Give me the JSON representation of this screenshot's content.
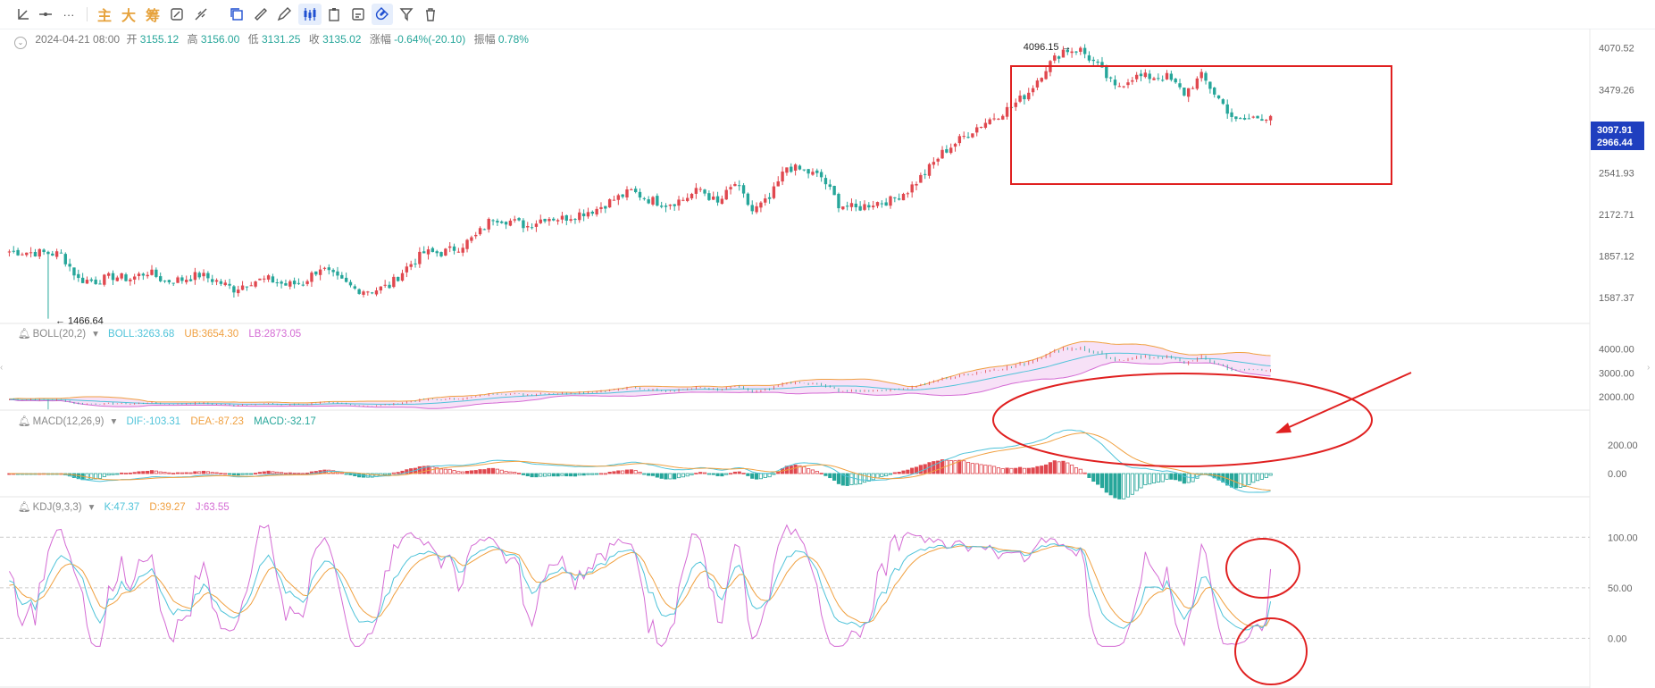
{
  "toolbar": {
    "items": [
      {
        "name": "trendline-tool",
        "label": ""
      },
      {
        "name": "horizontal-line-tool",
        "label": ""
      },
      {
        "name": "more-tool",
        "label": "···"
      },
      {
        "name": "main-force",
        "label": "主"
      },
      {
        "name": "big-order",
        "label": "大"
      },
      {
        "name": "chips",
        "label": "筹"
      }
    ]
  },
  "ohlc": {
    "datetime": "2024-04-21 08:00",
    "open_label": "开",
    "open": "3155.12",
    "high_label": "高",
    "high": "3156.00",
    "low_label": "低",
    "low": "3131.25",
    "close_label": "收",
    "close": "3135.02",
    "change_label": "涨幅",
    "change": "-0.64%(-20.10)",
    "amp_label": "振幅",
    "amp": "0.78%"
  },
  "boll_head": {
    "name": "BOLL(20,2)",
    "mid": "BOLL:3263.68",
    "ub": "UB:3654.30",
    "lb": "LB:2873.05"
  },
  "macd_head": {
    "name": "MACD(12,26,9)",
    "dif": "DIF:-103.31",
    "dea": "DEA:-87.23",
    "macd": "MACD:-32.17"
  },
  "kdj_head": {
    "name": "KDJ(9,3,3)",
    "k": "K:47.37",
    "d": "D:39.27",
    "j": "J:63.55"
  },
  "colors": {
    "up": "#e0484f",
    "down": "#26a69a",
    "annotation": "#e02020",
    "ub": "#f0a040",
    "lb": "#d46bd4",
    "mid": "#4fc3d9",
    "k": "#4fc3d9",
    "d": "#f0a040",
    "j": "#d46bd4",
    "price_badge": "#1f3fbf"
  },
  "chart_data": [
    {
      "type": "candlestick",
      "title": "",
      "y_ticks": [
        "4070.52",
        "3479.26",
        "2541.93",
        "2172.71",
        "1857.12",
        "1587.37"
      ],
      "annotations": {
        "high_label": "4096.15",
        "low_label": "1466.64"
      },
      "price_badges": [
        "3097.91",
        "2966.44"
      ],
      "anchor_closes": [
        1890,
        1885,
        1880,
        1870,
        1700,
        1690,
        1720,
        1705,
        1750,
        1690,
        1700,
        1730,
        1690,
        1640,
        1690,
        1700,
        1665,
        1680,
        1780,
        1700,
        1640,
        1630,
        1660,
        1780,
        1880,
        1880,
        1920,
        2000,
        2150,
        2120,
        2080,
        2150,
        2140,
        2180,
        2220,
        2300,
        2370,
        2300,
        2260,
        2300,
        2390,
        2260,
        2440,
        2200,
        2300,
        2600,
        2560,
        2500,
        2260,
        2220,
        2270,
        2290,
        2380,
        2540,
        2740,
        2880,
        3020,
        3140,
        3260,
        3450,
        3780,
        4040,
        4040,
        3800,
        3500,
        3650,
        3650,
        3650,
        3430,
        3660,
        3360,
        3080,
        3130,
        3150
      ],
      "y_range": [
        1460,
        4150
      ]
    },
    {
      "type": "line",
      "name": "BOLL(20,2)",
      "series": [
        "BOLL",
        "UB",
        "LB"
      ],
      "y_ticks": [
        "4000.00",
        "3000.00",
        "2000.00"
      ],
      "last": {
        "BOLL": 3263.68,
        "UB": 3654.3,
        "LB": 2873.05
      }
    },
    {
      "type": "bar",
      "name": "MACD(12,26,9)",
      "series": [
        "DIF",
        "DEA",
        "MACD"
      ],
      "y_ticks": [
        "200.00",
        "0.00"
      ],
      "last": {
        "DIF": -103.31,
        "DEA": -87.23,
        "MACD": -32.17
      }
    },
    {
      "type": "line",
      "name": "KDJ(9,3,3)",
      "series": [
        "K",
        "D",
        "J"
      ],
      "y_ticks": [
        "100.00",
        "50.00",
        "0.00"
      ],
      "last": {
        "K": 47.37,
        "D": 39.27,
        "J": 63.55
      }
    }
  ]
}
